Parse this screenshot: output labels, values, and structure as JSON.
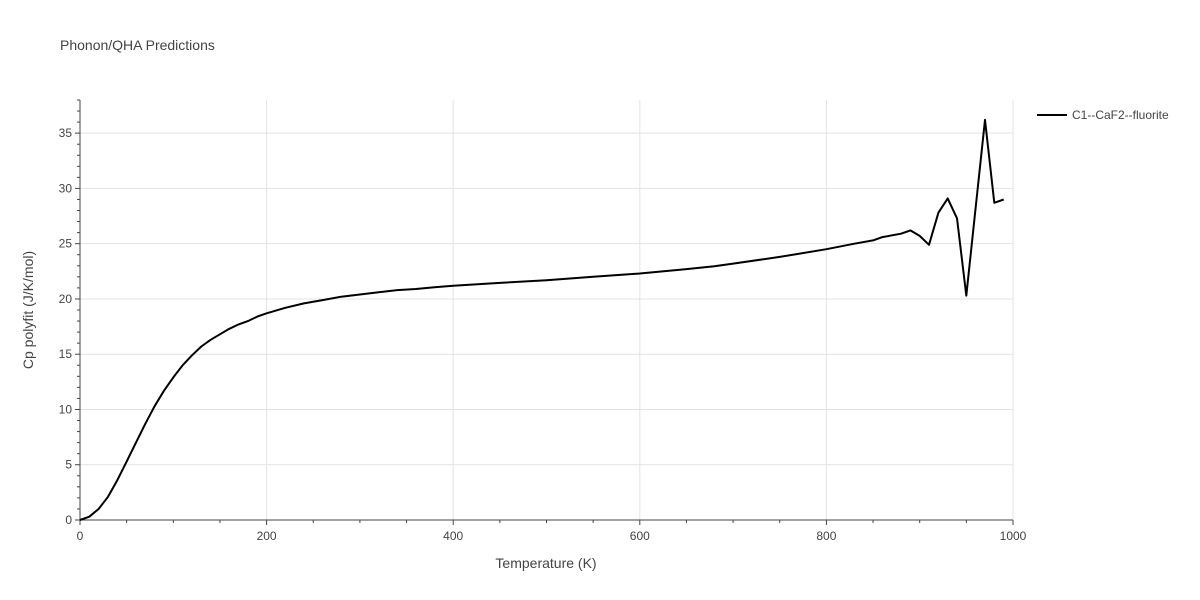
{
  "chart_data": {
    "type": "line",
    "title": "Phonon/QHA Predictions",
    "xlabel": "Temperature (K)",
    "ylabel": "Cp polyfit (J/K/mol)",
    "xlim": [
      0,
      1000
    ],
    "ylim": [
      0,
      38
    ],
    "xticks": [
      0,
      200,
      400,
      600,
      800,
      1000
    ],
    "yticks": [
      0,
      5,
      10,
      15,
      20,
      25,
      30,
      35
    ],
    "grid": true,
    "legend_position": "top-right",
    "series": [
      {
        "name": "C1--CaF2--fluorite",
        "color": "#000000",
        "x": [
          0,
          10,
          20,
          30,
          40,
          50,
          60,
          70,
          80,
          90,
          100,
          110,
          120,
          130,
          140,
          150,
          160,
          170,
          180,
          190,
          200,
          220,
          240,
          260,
          280,
          300,
          320,
          340,
          360,
          380,
          400,
          450,
          500,
          550,
          600,
          650,
          680,
          700,
          750,
          800,
          830,
          850,
          860,
          880,
          890,
          900,
          910,
          920,
          930,
          940,
          950,
          960,
          970,
          980,
          990
        ],
        "y": [
          0,
          0.3,
          1.0,
          2.1,
          3.6,
          5.3,
          7.0,
          8.7,
          10.3,
          11.7,
          12.9,
          14.0,
          14.9,
          15.7,
          16.3,
          16.8,
          17.3,
          17.7,
          18.0,
          18.4,
          18.7,
          19.2,
          19.6,
          19.9,
          20.2,
          20.4,
          20.6,
          20.8,
          20.9,
          21.05,
          21.2,
          21.45,
          21.7,
          22.0,
          22.3,
          22.7,
          22.95,
          23.2,
          23.8,
          24.5,
          25.0,
          25.3,
          25.6,
          25.9,
          26.2,
          25.7,
          24.9,
          27.8,
          29.1,
          27.3,
          20.3,
          28.3,
          36.2,
          28.7,
          29.0
        ]
      }
    ]
  }
}
